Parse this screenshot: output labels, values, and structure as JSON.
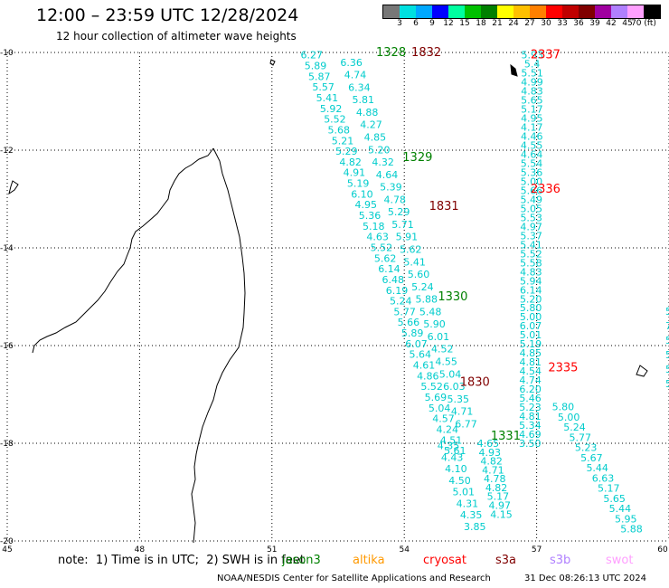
{
  "header": {
    "title": "12:00 – 23:59 UTC 12/28/2024",
    "subtitle": "12 hour collection of altimeter wave heights"
  },
  "colorbar": {
    "colors": [
      "#777777",
      "#00e0e0",
      "#00a8ff",
      "#0000ff",
      "#00ffa0",
      "#00c000",
      "#008000",
      "#ffff00",
      "#ffc000",
      "#ff8000",
      "#ff0000",
      "#c00000",
      "#800000",
      "#a000a0",
      "#b080ff",
      "#ffa0ff",
      "#000000"
    ],
    "labels": [
      "3",
      "6",
      "9",
      "12",
      "15",
      "18",
      "21",
      "24",
      "27",
      "30",
      "33",
      "36",
      "39",
      "42",
      "45",
      "70 (ft)"
    ]
  },
  "map": {
    "lon_range": [
      45,
      60
    ],
    "lat_range": [
      -20,
      -10
    ],
    "x_ticks": [
      "45",
      "48",
      "51",
      "54",
      "57",
      "60"
    ],
    "y_ticks": [
      "-10",
      "-12",
      "-14",
      "-16",
      "-18",
      "-20"
    ],
    "grid": true,
    "track_color": "#00cccc",
    "time_labels": [
      {
        "text": "1328",
        "color": "#008000",
        "lon": 53.7,
        "lat": -10.0
      },
      {
        "text": "1832",
        "color": "#800000",
        "lon": 54.5,
        "lat": -10.0
      },
      {
        "text": "2337",
        "color": "#ff0000",
        "lon": 57.2,
        "lat": -10.05
      },
      {
        "text": "1329",
        "color": "#008000",
        "lon": 54.3,
        "lat": -12.15
      },
      {
        "text": "2336",
        "color": "#ff0000",
        "lon": 57.2,
        "lat": -12.8
      },
      {
        "text": "1831",
        "color": "#800000",
        "lon": 54.9,
        "lat": -13.15
      },
      {
        "text": "1330",
        "color": "#008000",
        "lon": 55.1,
        "lat": -15.0
      },
      {
        "text": "2335",
        "color": "#ff0000",
        "lon": 57.6,
        "lat": -16.45
      },
      {
        "text": "1830",
        "color": "#800000",
        "lon": 55.6,
        "lat": -16.75
      },
      {
        "text": "1331",
        "color": "#008000",
        "lon": 56.3,
        "lat": -17.85
      }
    ],
    "tracks": [
      {
        "name": "track-a",
        "lon_start": 51.9,
        "lat_start": -10.05,
        "lon_end": 55.15,
        "lat_end": -18.15,
        "values": [
          "6.27",
          "5.89",
          "5.87",
          "5.57",
          "5.41",
          "5.92",
          "5.52",
          "5.68",
          "5.21",
          "5.29",
          "4.82",
          "4.91",
          "5.19",
          "6.10",
          "4.95",
          "5.36",
          "5.18",
          "4.63",
          "5.52",
          "5.62",
          "6.14",
          "6.48",
          "6.19",
          "5.24",
          "5.77",
          "5.66",
          "5.89",
          "6.07",
          "5.64",
          "4.61",
          "4.86",
          "5.52",
          "5.69",
          "5.04",
          "4.57",
          "4.24",
          "4.51",
          "5.61"
        ]
      },
      {
        "name": "track-b",
        "lon_start": 52.8,
        "lat_start": -10.2,
        "lon_end": 55.4,
        "lat_end": -17.6,
        "values": [
          "6.36",
          "4.74",
          "6.34",
          "5.81",
          "4.88",
          "4.27",
          "4.85",
          "5.20",
          "4.32",
          "4.64",
          "5.39",
          "4.78",
          "5.29",
          "5.71",
          "5.91",
          "5.62",
          "5.41",
          "5.60",
          "5.24",
          "5.88",
          "5.48",
          "5.90",
          "6.01",
          "4.52",
          "4.55",
          "5.04",
          "6.03",
          "5.35",
          "4.71",
          "6.77"
        ]
      },
      {
        "name": "track-c",
        "lon_start": 55.0,
        "lat_start": -18.05,
        "lon_end": 55.6,
        "lat_end": -19.7,
        "values": [
          "4.35",
          "4.43",
          "4.10",
          "4.50",
          "5.01",
          "4.31",
          "4.35",
          "3.85"
        ]
      },
      {
        "name": "track-d",
        "lon_start": 55.9,
        "lat_start": -18.0,
        "lon_end": 56.2,
        "lat_end": -19.45,
        "values": [
          "4.65",
          "4.93",
          "4.82",
          "4.71",
          "4.78",
          "4.82",
          "5.17",
          "4.97",
          "4.15"
        ]
      },
      {
        "name": "track-e",
        "lon_start": 56.9,
        "lat_start": -10.05,
        "lon_end": 56.85,
        "lat_end": -18.0,
        "values": [
          "5.93",
          "5.4",
          "5.51",
          "4.99",
          "4.83",
          "5.65",
          "5.17",
          "4.95",
          "4.17",
          "4.46",
          "4.55",
          "4.64",
          "5.54",
          "5.36",
          "5.00",
          "5.66",
          "5.49",
          "5.05",
          "5.53",
          "4.97",
          "5.37",
          "5.41",
          "5.52",
          "5.58",
          "4.83",
          "5.94",
          "6.14",
          "5.20",
          "5.80",
          "5.00",
          "6.07",
          "5.01",
          "5.19",
          "4.85",
          "4.81",
          "4.54",
          "4.74",
          "6.20",
          "5.46",
          "5.23",
          "4.81",
          "5.34",
          "4.69",
          "3.50"
        ]
      },
      {
        "name": "track-f",
        "lon_start": 57.6,
        "lat_start": -17.25,
        "lon_end": 59.15,
        "lat_end": -19.75,
        "values": [
          "5.80",
          "5.00",
          "5.24",
          "5.77",
          "5.23",
          "5.67",
          "5.44",
          "6.63",
          "5.17",
          "5.65",
          "5.44",
          "5.95",
          "5.88"
        ]
      }
    ],
    "edge_values": [
      "5",
      "7",
      "5",
      "5",
      "5",
      "5"
    ]
  },
  "footer": {
    "note": "note:  1) Time is in UTC;  2) SWH is in feet",
    "satellites": [
      {
        "name": "jason3",
        "color": "#008000"
      },
      {
        "name": "altika",
        "color": "#ff9900"
      },
      {
        "name": "cryosat",
        "color": "#ff0000"
      },
      {
        "name": "s3a",
        "color": "#800000"
      },
      {
        "name": "s3b",
        "color": "#b080ff"
      },
      {
        "name": "swot",
        "color": "#ffa0ff"
      }
    ],
    "credit": "NOAA/NESDIS Center for Satellite Applications and Research",
    "timestamp": "31 Dec 08:26:13 UTC 2024"
  }
}
